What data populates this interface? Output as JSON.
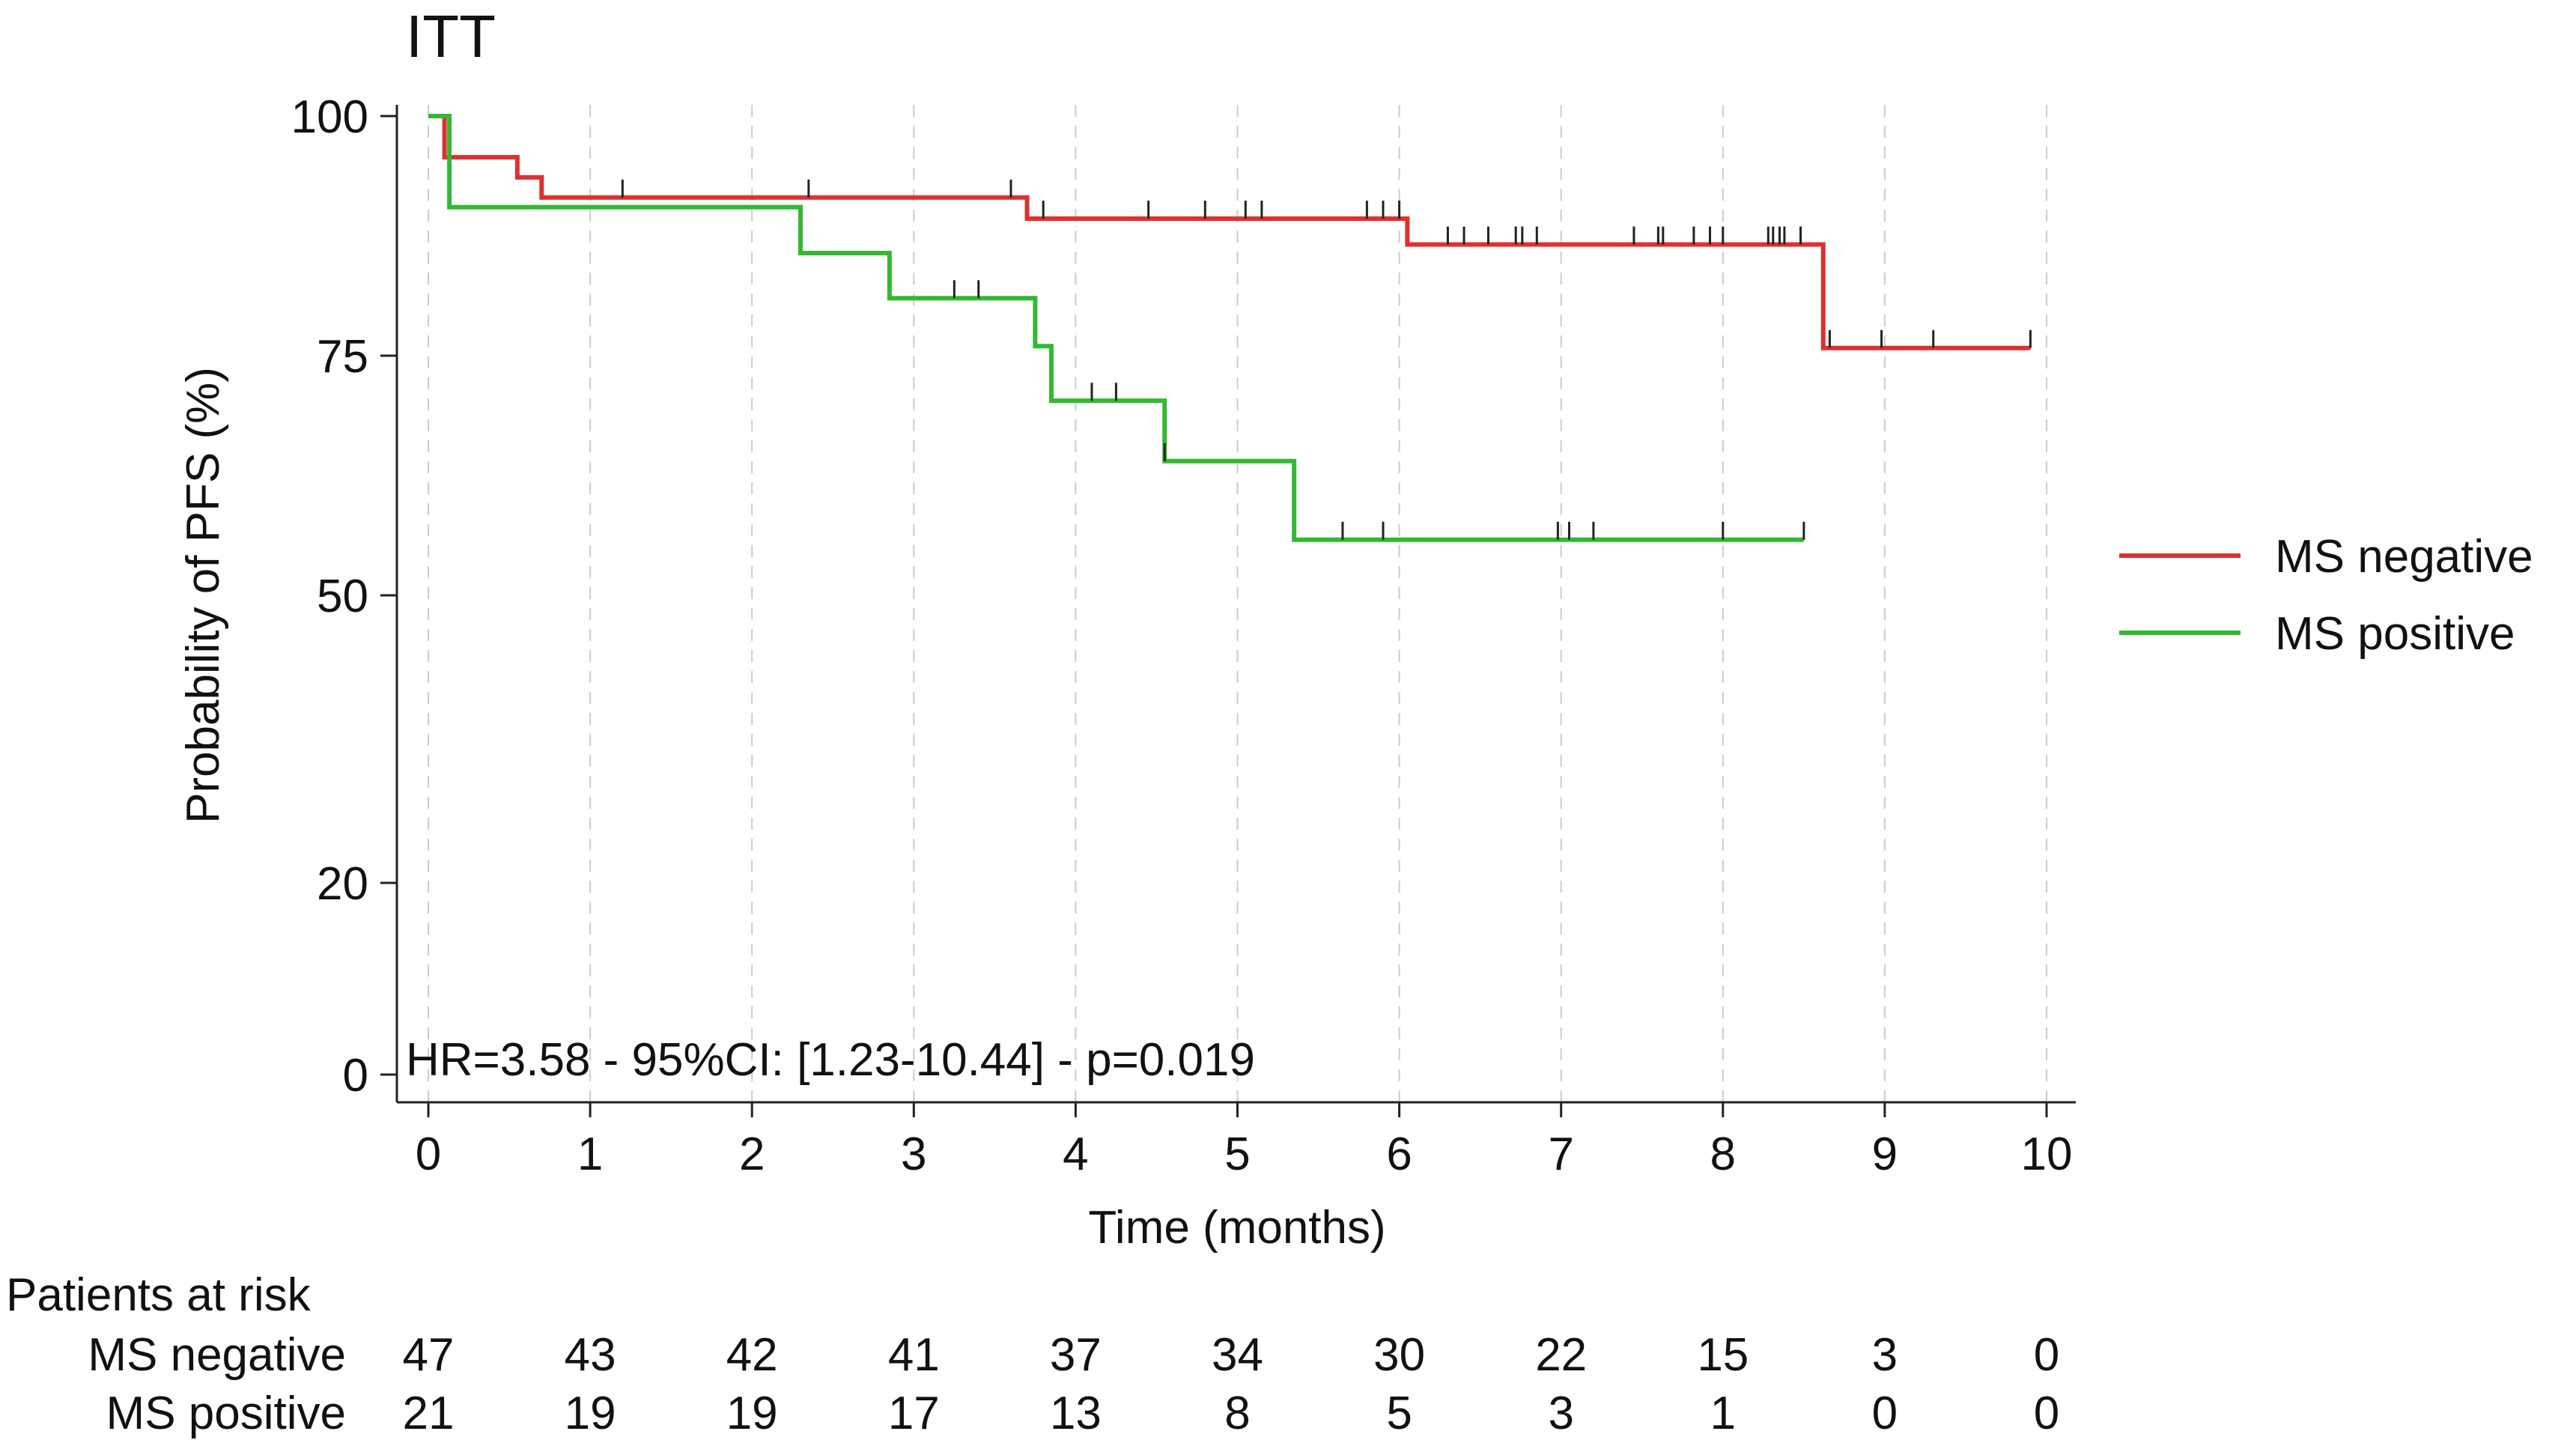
{
  "chart_data": {
    "type": "line",
    "subtype": "kaplan-meier",
    "title": "ITT",
    "xlabel": "Time (months)",
    "ylabel": "Probability of PFS (%)",
    "xlim": [
      0,
      10
    ],
    "ylim": [
      0,
      100
    ],
    "x_ticks": [
      "0",
      "1",
      "2",
      "3",
      "4",
      "5",
      "6",
      "7",
      "8",
      "9",
      "10"
    ],
    "y_ticks": [
      {
        "value": 0,
        "label": "0"
      },
      {
        "value": 20,
        "label": "20"
      },
      {
        "value": 50,
        "label": "50"
      },
      {
        "value": 75,
        "label": "75"
      },
      {
        "value": 100,
        "label": "100"
      }
    ],
    "grid": "vertical dashed",
    "legend_position": "right",
    "annotation": "HR=3.58 - 95%CI: [1.23-10.44] - p=0.019",
    "colors": {
      "ms_negative": "#e03030",
      "ms_positive": "#33b833",
      "axis": "#222222",
      "grid": "#cccccc"
    },
    "series": [
      {
        "name": "MS negative",
        "color": "#e03030",
        "steps": [
          [
            0,
            100
          ],
          [
            0.1,
            95.7
          ],
          [
            0.55,
            93.6
          ],
          [
            0.7,
            91.5
          ],
          [
            3.6,
            91.5
          ],
          [
            3.7,
            89.3
          ],
          [
            6.0,
            89.3
          ],
          [
            6.05,
            86.6
          ],
          [
            8.6,
            86.6
          ],
          [
            8.62,
            75.8
          ],
          [
            9.9,
            75.8
          ]
        ],
        "censored": [
          1.2,
          2.35,
          3.6,
          3.8,
          4.45,
          4.8,
          5.05,
          5.15,
          5.8,
          5.9,
          6.0,
          6.3,
          6.4,
          6.55,
          6.72,
          6.76,
          6.85,
          7.45,
          7.6,
          7.63,
          7.82,
          7.92,
          8.0,
          8.28,
          8.31,
          8.35,
          8.38,
          8.48,
          8.66,
          8.98,
          9.3,
          9.9
        ]
      },
      {
        "name": "MS positive",
        "color": "#33b833",
        "steps": [
          [
            0,
            100
          ],
          [
            0.13,
            90.5
          ],
          [
            2.3,
            90.5
          ],
          [
            2.3,
            85.7
          ],
          [
            2.85,
            85.7
          ],
          [
            2.85,
            81
          ],
          [
            3.75,
            81
          ],
          [
            3.75,
            76
          ],
          [
            3.85,
            76
          ],
          [
            3.85,
            70.3
          ],
          [
            4.55,
            70.3
          ],
          [
            4.55,
            64
          ],
          [
            5.35,
            64
          ],
          [
            5.35,
            55.8
          ],
          [
            8.5,
            55.8
          ]
        ],
        "censored": [
          3.25,
          3.4,
          4.1,
          4.25,
          4.55,
          5.65,
          5.9,
          6.98,
          7.05,
          7.2,
          8.0,
          8.5
        ]
      }
    ]
  },
  "risk_table": {
    "title": "Patients at risk",
    "rows": [
      {
        "label": "MS negative",
        "values": [
          "47",
          "43",
          "42",
          "41",
          "37",
          "34",
          "30",
          "22",
          "15",
          "3",
          "0"
        ]
      },
      {
        "label": "MS positive",
        "values": [
          "21",
          "19",
          "19",
          "17",
          "13",
          "8",
          "5",
          "3",
          "1",
          "0",
          "0"
        ]
      }
    ]
  }
}
